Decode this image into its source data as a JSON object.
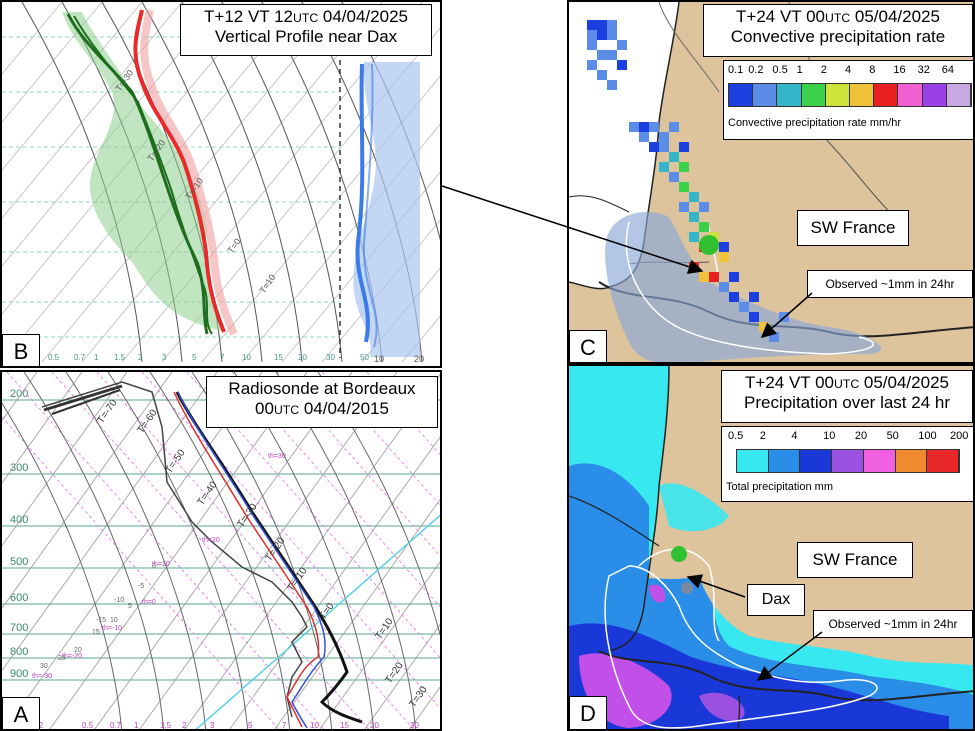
{
  "panels": {
    "B": {
      "letter": "B",
      "title_prefix": "T+12 VT 12",
      "title_utc": "UTC",
      "title_date": " 04/04/2025",
      "title_line2": "Vertical Profile near Dax",
      "bottom_ticks": [
        "0.5",
        "0.7",
        "1",
        "1.5",
        "2",
        "3",
        "5",
        "7",
        "10",
        "15",
        "20",
        "30",
        "50"
      ],
      "right_ticks": [
        "10",
        "20"
      ],
      "temp_labels": [
        "T=-30",
        "T=-20",
        "T=-10",
        "T=0",
        "T=10"
      ]
    },
    "A": {
      "letter": "A",
      "title_line1": "Radiosonde at Bordeaux",
      "title_utc": "UTC",
      "title_prefix": "00",
      "title_date": " 04/04/2015",
      "pressure_labels": [
        "200",
        "300",
        "400",
        "500",
        "600",
        "700",
        "800",
        "900"
      ],
      "temp_labels": [
        "T=-70",
        "T=-60",
        "T=-50",
        "T=-40",
        "T=-30",
        "T=-20",
        "T=-10",
        "T=0",
        "T=10",
        "T=20",
        "T=30"
      ],
      "bottom_ticks": [
        "0.2",
        "0.5",
        "0.7",
        "1",
        "1.5",
        "2",
        "3",
        "5",
        "7",
        "10",
        "15",
        "20",
        "30"
      ],
      "theta_labels": [
        "th=30",
        "th=20",
        "th=10",
        "th=0",
        "th=-10",
        "th=-20",
        "th=-30"
      ],
      "dry_labels": [
        "30",
        "25",
        "20",
        "15",
        "10",
        "5",
        "0",
        "-5",
        "-10",
        "-15"
      ]
    },
    "C": {
      "letter": "C",
      "title_prefix": "T+24 VT 00",
      "title_utc": "UTC",
      "title_date": " 05/04/2025",
      "title_line2": "Convective precipitation rate",
      "legend_values": [
        "0.1",
        "0.2",
        "0.5",
        "1",
        "2",
        "4",
        "8",
        "16",
        "32",
        "64"
      ],
      "legend_colors": [
        "#1c3fe0",
        "#5b8de8",
        "#35b6c8",
        "#3bd14a",
        "#cde33a",
        "#f0c23a",
        "#e82020",
        "#f060d0",
        "#9a40e8",
        "#c8a8e0"
      ],
      "legend_caption": "Convective precipitation rate mm/hr",
      "region_label": "SW France",
      "observed_label": "Observed ~1mm in 24hr"
    },
    "D": {
      "letter": "D",
      "title_prefix": "T+24 VT 00",
      "title_utc": "UTC",
      "title_date": " 05/04/2025",
      "title_line2": "Precipitation over last 24 hr",
      "legend_values": [
        "0.5",
        "2",
        "4",
        "10",
        "20",
        "50",
        "100",
        "200"
      ],
      "legend_colors": [
        "#38e8f0",
        "#2a8ee8",
        "#1a38d8",
        "#9a50e0",
        "#f060e0",
        "#f08a30",
        "#e82828"
      ],
      "legend_caption": "Total precipitation mm",
      "region_label": "SW France",
      "dax_label": "Dax",
      "observed_label": "Observed ~1mm in 24hr"
    }
  }
}
